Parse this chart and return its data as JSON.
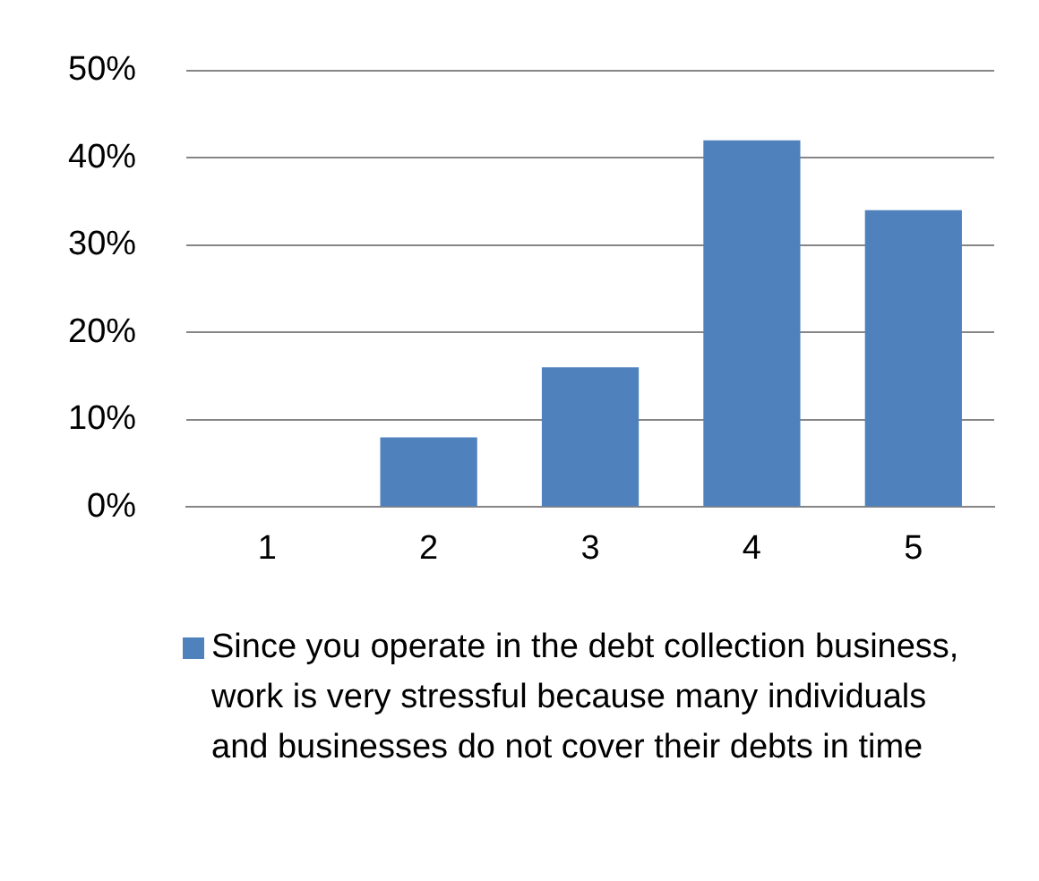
{
  "chart_data": {
    "type": "bar",
    "categories": [
      "1",
      "2",
      "3",
      "4",
      "5"
    ],
    "series": [
      {
        "name": "Since you operate in the debt collection business, work is very stressful because many individuals and businesses do not cover their debts in time",
        "color": "#4f81bd",
        "values": [
          0,
          8,
          16,
          42,
          34
        ]
      }
    ],
    "ylim": [
      0,
      50
    ],
    "yticks": [
      {
        "value": 0,
        "label": "0%"
      },
      {
        "value": 10,
        "label": "10%"
      },
      {
        "value": 20,
        "label": "20%"
      },
      {
        "value": 30,
        "label": "30%"
      },
      {
        "value": 40,
        "label": "40%"
      },
      {
        "value": 50,
        "label": "50%"
      }
    ],
    "grid": "y",
    "legend": "bottom"
  }
}
